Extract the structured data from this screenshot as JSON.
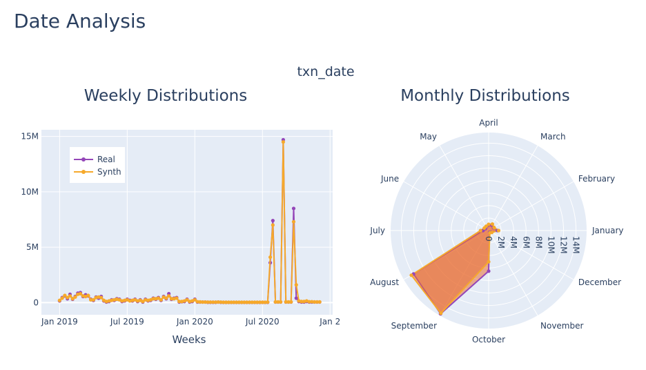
{
  "page": {
    "title": "Date Analysis"
  },
  "figure": {
    "title": "txn_date"
  },
  "colors": {
    "real": "#9446b8",
    "synth": "#f6a92b",
    "plot_bg": "#e5ecf6",
    "grid": "#ffffff",
    "text": "#2a3f5f",
    "axis_text": "#2a3f5f"
  },
  "chart_data": [
    {
      "type": "line",
      "title": "Weekly Distributions",
      "xlabel": "Weeks",
      "ylabel": "",
      "x_tick_labels": [
        "Jan 2019",
        "Jul 2019",
        "Jan 2020",
        "Jul 2020",
        "Jan 2"
      ],
      "x_tick_weeks": [
        0,
        26,
        52,
        78,
        104
      ],
      "y_tick_labels": [
        "0",
        "5M",
        "10M",
        "15M"
      ],
      "ylim": [
        -1.1,
        15.6
      ],
      "y_unit": "M",
      "xlim": [
        -7,
        105
      ],
      "grid": true,
      "legend": {
        "placement": "top-left",
        "entries": [
          "Real",
          "Synth"
        ]
      },
      "x_weeks": [
        0,
        1,
        2,
        3,
        4,
        5,
        6,
        7,
        8,
        9,
        10,
        11,
        12,
        13,
        14,
        15,
        16,
        17,
        18,
        19,
        20,
        21,
        22,
        23,
        24,
        25,
        26,
        27,
        28,
        29,
        30,
        31,
        32,
        33,
        34,
        35,
        36,
        37,
        38,
        39,
        40,
        41,
        42,
        43,
        44,
        45,
        46,
        47,
        48,
        49,
        50,
        51,
        52,
        53,
        54,
        55,
        56,
        57,
        58,
        59,
        60,
        61,
        62,
        63,
        64,
        65,
        66,
        67,
        68,
        69,
        70,
        71,
        72,
        73,
        74,
        75,
        76,
        77,
        78,
        79,
        80,
        81,
        82,
        83,
        84,
        85,
        86,
        87,
        88,
        89,
        90,
        91,
        92,
        93,
        94,
        95,
        96,
        97,
        98,
        99,
        100
      ],
      "series": [
        {
          "name": "Real",
          "values": [
            0.15,
            0.45,
            0.6,
            0.35,
            0.75,
            0.3,
            0.55,
            0.85,
            0.9,
            0.55,
            0.7,
            0.6,
            0.3,
            0.2,
            0.5,
            0.4,
            0.55,
            0.15,
            0.05,
            0.1,
            0.25,
            0.2,
            0.35,
            0.3,
            0.1,
            0.15,
            0.3,
            0.2,
            0.15,
            0.3,
            0.1,
            0.25,
            0.05,
            0.3,
            0.15,
            0.2,
            0.4,
            0.3,
            0.45,
            0.2,
            0.55,
            0.35,
            0.8,
            0.3,
            0.4,
            0.45,
            0.05,
            0.08,
            0.1,
            0.3,
            0.05,
            0.1,
            0.3,
            0.05,
            0.05,
            0.05,
            0.05,
            0.03,
            0.03,
            0.03,
            0.03,
            0.05,
            0.03,
            0.02,
            0.02,
            0.02,
            0.02,
            0.02,
            0.02,
            0.02,
            0.02,
            0.02,
            0.02,
            0.02,
            0.02,
            0.02,
            0.02,
            0.02,
            0.02,
            0.02,
            0.03,
            3.6,
            7.4,
            0.05,
            0.05,
            0.05,
            14.7,
            0.05,
            0.05,
            0.05,
            8.5,
            0.4,
            0.1,
            0.05,
            0.05,
            0.1,
            0.05,
            0.05,
            0.05,
            0.05,
            0.05
          ]
        },
        {
          "name": "Synth",
          "values": [
            0.2,
            0.4,
            0.65,
            0.45,
            0.6,
            0.35,
            0.5,
            0.75,
            0.8,
            0.6,
            0.55,
            0.65,
            0.25,
            0.25,
            0.45,
            0.5,
            0.45,
            0.2,
            0.1,
            0.15,
            0.2,
            0.25,
            0.3,
            0.25,
            0.15,
            0.2,
            0.25,
            0.15,
            0.2,
            0.25,
            0.15,
            0.2,
            0.1,
            0.25,
            0.2,
            0.25,
            0.35,
            0.35,
            0.4,
            0.25,
            0.5,
            0.4,
            0.6,
            0.35,
            0.35,
            0.4,
            0.1,
            0.1,
            0.15,
            0.25,
            0.1,
            0.15,
            0.25,
            0.08,
            0.06,
            0.05,
            0.05,
            0.04,
            0.04,
            0.04,
            0.04,
            0.05,
            0.04,
            0.03,
            0.03,
            0.03,
            0.03,
            0.03,
            0.03,
            0.03,
            0.03,
            0.03,
            0.03,
            0.03,
            0.03,
            0.03,
            0.03,
            0.03,
            0.03,
            0.03,
            0.04,
            4.1,
            7.0,
            0.06,
            0.06,
            0.06,
            14.5,
            0.06,
            0.06,
            0.06,
            7.3,
            1.6,
            0.15,
            0.1,
            0.1,
            0.15,
            0.08,
            0.08,
            0.06,
            0.06,
            0.06
          ]
        }
      ]
    },
    {
      "type": "radar",
      "title": "Monthly Distributions",
      "categories": [
        "January",
        "February",
        "March",
        "April",
        "May",
        "June",
        "July",
        "August",
        "September",
        "October",
        "November",
        "December"
      ],
      "radial_tick_labels": [
        "0",
        "2M",
        "4M",
        "6M",
        "8M",
        "10M",
        "12M",
        "14M"
      ],
      "radial_ticks": [
        0,
        2,
        4,
        6,
        8,
        10,
        12,
        14
      ],
      "rmax": 15.7,
      "unit": "M",
      "series": [
        {
          "name": "Real",
          "values": [
            1.4,
            0.9,
            1.0,
            0.9,
            0.7,
            0.6,
            0.9,
            13.9,
            15.4,
            6.5,
            0.3,
            0.5
          ]
        },
        {
          "name": "Synth",
          "values": [
            1.6,
            1.0,
            1.2,
            1.0,
            0.8,
            0.8,
            1.3,
            14.3,
            15.3,
            5.0,
            0.4,
            0.6
          ]
        }
      ]
    }
  ]
}
